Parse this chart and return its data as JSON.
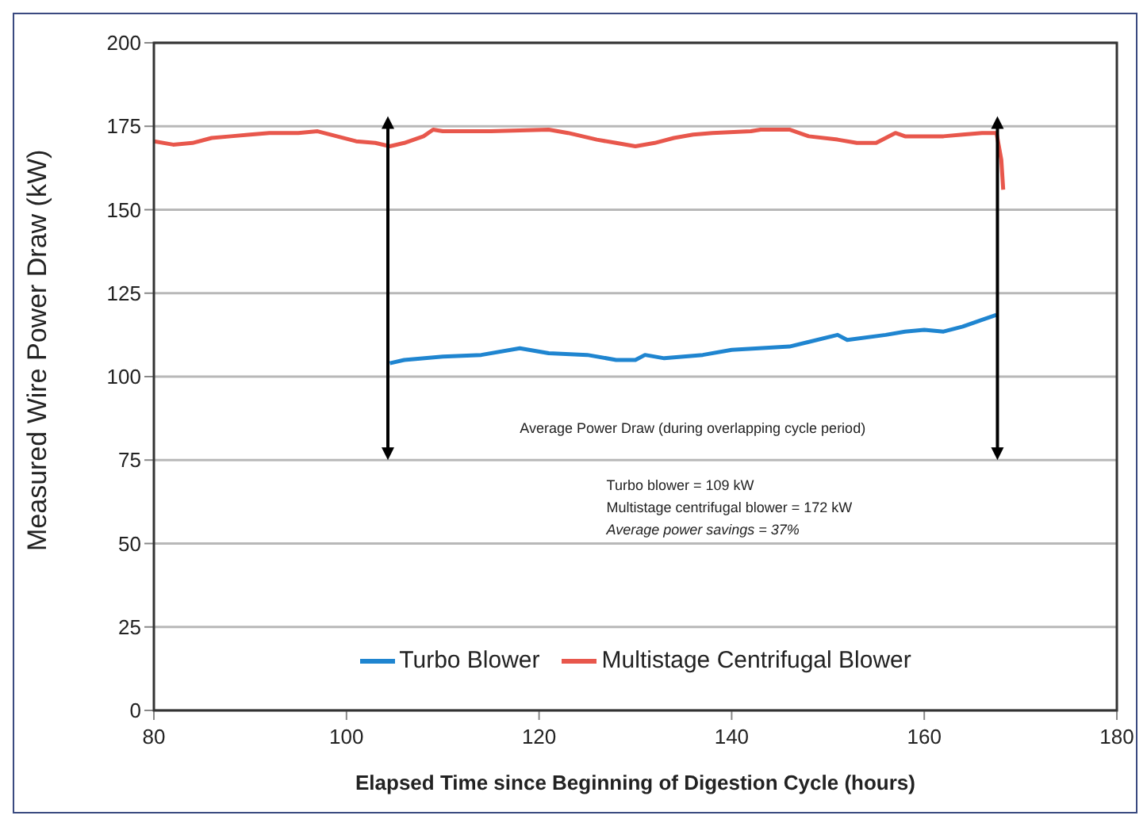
{
  "chart_data": {
    "type": "line",
    "xlabel": "Elapsed Time since Beginning of Digestion Cycle (hours)",
    "ylabel": "Measured Wire Power Draw (kW)",
    "xlim": [
      80,
      180
    ],
    "xticks": [
      80,
      100,
      120,
      140,
      160,
      180
    ],
    "ylim": [
      0,
      200
    ],
    "yticks": [
      0,
      25,
      50,
      75,
      100,
      125,
      150,
      175,
      200
    ],
    "grid": "y",
    "legend": "bottom",
    "marker": "none",
    "line_style": "solid",
    "series": [
      {
        "name": "Turbo Blower",
        "color": "#1f85d0",
        "x": [
          104.5,
          106,
          110,
          114,
          118,
          121,
          125,
          128,
          130,
          131,
          133,
          137,
          140,
          146,
          151,
          152,
          156,
          158,
          160,
          162,
          164,
          166,
          167.5
        ],
        "values": [
          104,
          105,
          106,
          106.5,
          108.5,
          107,
          106.5,
          105,
          105,
          106.5,
          105.5,
          106.5,
          108,
          109,
          112.5,
          111,
          112.5,
          113.5,
          114,
          113.5,
          115,
          117,
          118.5
        ]
      },
      {
        "name": "Multistage Centrifugal Blower",
        "color": "#e8574c",
        "x": [
          80,
          82,
          84,
          86,
          88,
          90,
          92,
          95,
          97,
          99,
          101,
          103,
          104.5,
          106,
          108,
          109,
          110,
          115,
          121,
          123,
          126,
          128,
          130,
          132,
          134,
          136,
          138,
          142,
          143,
          146,
          148,
          151,
          153,
          155,
          157,
          158,
          162,
          164,
          166,
          167.5,
          168,
          168.2
        ],
        "values": [
          170.5,
          169.5,
          170,
          171.5,
          172,
          172.5,
          173,
          173,
          173.5,
          172,
          170.5,
          170,
          169,
          170,
          172,
          174,
          173.5,
          173.5,
          174,
          173,
          171,
          170,
          169,
          170,
          171.5,
          172.5,
          173,
          173.5,
          174,
          174,
          172,
          171,
          170,
          170,
          173,
          172,
          172,
          172.5,
          173,
          173,
          165,
          156
        ]
      }
    ],
    "annotations": [
      "Average Power Draw (during overlapping cycle period)",
      "Turbo blower = 109 kW",
      "Multistage centrifugal blower = 172 kW",
      "Average power savings = 37%"
    ]
  }
}
